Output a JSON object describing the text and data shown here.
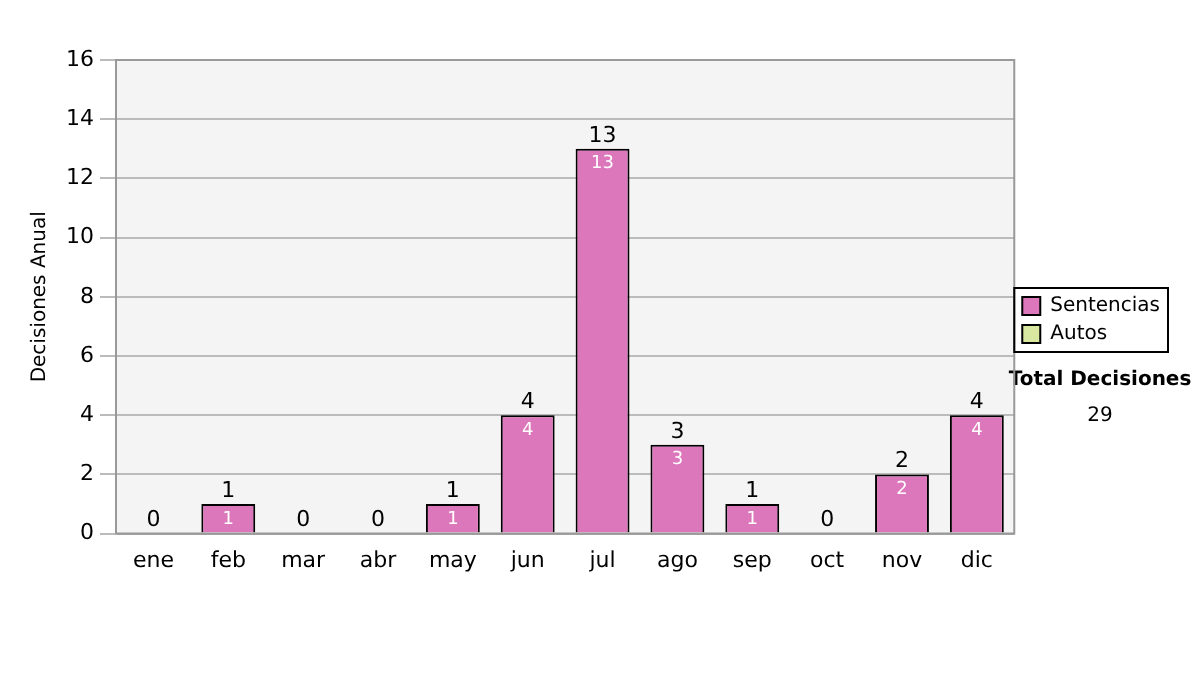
{
  "chart_data": {
    "type": "bar",
    "stacked": true,
    "ylabel": "Decisiones Anual",
    "categories": [
      "ene",
      "feb",
      "mar",
      "abr",
      "may",
      "jun",
      "jul",
      "ago",
      "sep",
      "oct",
      "nov",
      "dic"
    ],
    "series": [
      {
        "name": "Sentencias",
        "color": "#dd77bb",
        "values": [
          0,
          1,
          0,
          0,
          1,
          4,
          13,
          3,
          1,
          0,
          2,
          4
        ],
        "value_labels": [
          null,
          "1",
          null,
          null,
          "1",
          "4",
          "13",
          "3",
          "1",
          null,
          "2",
          "4"
        ]
      },
      {
        "name": "Autos",
        "color": "#d8e8a0",
        "values": [
          0,
          0,
          0,
          0,
          0,
          0,
          0,
          0,
          0,
          0,
          0,
          0
        ]
      }
    ],
    "totals": [
      "0",
      "1",
      "0",
      "0",
      "1",
      "4",
      "13",
      "3",
      "1",
      "0",
      "2",
      "4"
    ],
    "ylim": [
      0,
      16
    ],
    "yticks": [
      0,
      2,
      4,
      6,
      8,
      10,
      12,
      14,
      16
    ],
    "grid": "y",
    "legend": "right",
    "annotations": [
      "Total Decisiones",
      "29"
    ]
  }
}
